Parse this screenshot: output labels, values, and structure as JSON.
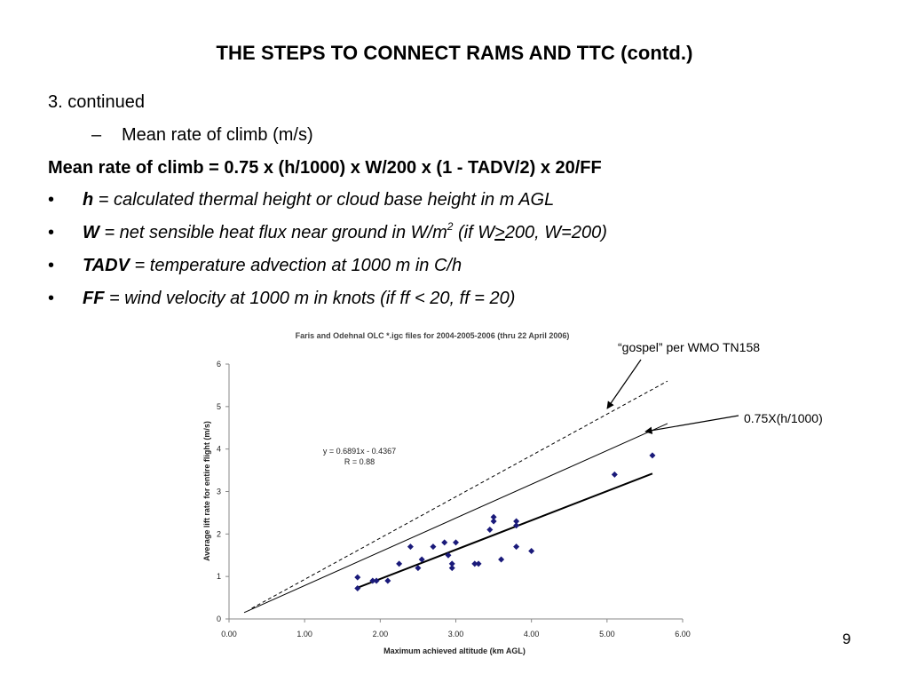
{
  "slide": {
    "title": "THE STEPS TO CONNECT RAMS AND TTC (contd.)",
    "step_label": "3. continued",
    "sub_dash": "–",
    "sub_item": "Mean rate of climb (m/s)",
    "formula": "Mean rate of climb = 0.75 x (h/1000) x W/200 x (1 - TADV/2) x 20/FF",
    "bullet_char": "•",
    "bullets": [
      {
        "term": "h",
        "desc": " =  calculated thermal height or cloud base height in m AGL"
      },
      {
        "term": "W",
        "desc_a": " = net sensible heat flux near ground in W/m",
        "sup": "2",
        "desc_b": " (if W",
        "ge": ">",
        "desc_c": "200, W=200)"
      },
      {
        "term": "TADV",
        "desc": " = temperature advection at 1000 m in C/h"
      },
      {
        "term": "FF",
        "desc": "  = wind velocity at 1000 m in knots (if ff < 20, ff = 20)"
      }
    ],
    "annotation_1": "“gospel” per WMO TN158",
    "annotation_2": "0.75X(h/1000)",
    "page_number": "9"
  },
  "chart_data": {
    "type": "scatter",
    "title": "Faris and Odehnal OLC *.igc files for 2004-2005-2006 (thru 22 April 2006)",
    "xlabel": "Maximum achieved altitude (km AGL)",
    "ylabel": "Average lift rate for entire flight (m/s)",
    "xlim": [
      0,
      6
    ],
    "ylim": [
      0,
      6
    ],
    "x_ticks": [
      "0.00",
      "1.00",
      "2.00",
      "3.00",
      "4.00",
      "5.00",
      "6.00"
    ],
    "y_ticks": [
      "0",
      "1",
      "2",
      "3",
      "4",
      "5",
      "6"
    ],
    "grid": false,
    "points": [
      [
        1.7,
        0.72
      ],
      [
        1.7,
        0.98
      ],
      [
        1.9,
        0.9
      ],
      [
        1.95,
        0.9
      ],
      [
        2.1,
        0.9
      ],
      [
        2.25,
        1.3
      ],
      [
        2.4,
        1.7
      ],
      [
        2.5,
        1.2
      ],
      [
        2.55,
        1.4
      ],
      [
        2.7,
        1.7
      ],
      [
        2.85,
        1.8
      ],
      [
        2.9,
        1.5
      ],
      [
        2.95,
        1.2
      ],
      [
        2.95,
        1.3
      ],
      [
        3.0,
        1.8
      ],
      [
        3.25,
        1.3
      ],
      [
        3.3,
        1.3
      ],
      [
        3.45,
        2.1
      ],
      [
        3.5,
        2.3
      ],
      [
        3.5,
        2.4
      ],
      [
        3.6,
        1.4
      ],
      [
        3.8,
        2.2
      ],
      [
        3.8,
        2.3
      ],
      [
        3.8,
        1.7
      ],
      [
        4.0,
        1.6
      ],
      [
        5.1,
        3.4
      ],
      [
        5.6,
        3.85
      ]
    ],
    "trendline": {
      "slope": 0.6891,
      "intercept": -0.4367,
      "x_range": [
        1.7,
        5.6
      ],
      "equation_text": "y = 0.6891x - 0.4367",
      "r_text": "R = 0.88"
    },
    "reference_lines": [
      {
        "style": "dashed",
        "from": [
          0.3,
          0.25
        ],
        "to": [
          5.8,
          5.6
        ]
      },
      {
        "style": "solid",
        "from": [
          0.2,
          0.15
        ],
        "to": [
          5.8,
          4.6
        ]
      }
    ],
    "colors": {
      "marker": "#1a1a7a",
      "line": "#000000",
      "axis": "#888888"
    }
  }
}
